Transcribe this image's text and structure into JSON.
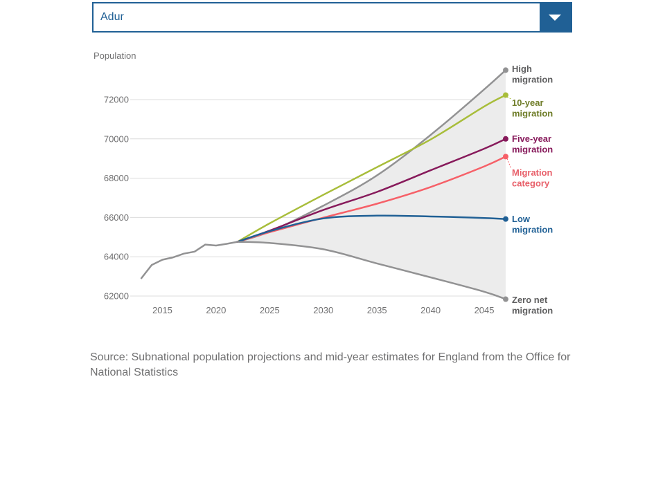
{
  "dropdown": {
    "selected": "Adur"
  },
  "chart_data": {
    "type": "line",
    "ylabel": "Population",
    "xlim": [
      2012,
      2047
    ],
    "ylim": [
      61700,
      73900
    ],
    "xticks": [
      2015,
      2020,
      2025,
      2030,
      2035,
      2040,
      2045
    ],
    "yticks": [
      62000,
      64000,
      66000,
      68000,
      70000,
      72000
    ],
    "grid": "horizontal",
    "shaded_range": {
      "between": [
        "High migration",
        "Zero net migration"
      ],
      "from": 2022,
      "color": "#ececec"
    },
    "historical": {
      "color": "#929293",
      "x": [
        2013,
        2014,
        2015,
        2016,
        2017,
        2018,
        2019,
        2020,
        2021,
        2022
      ],
      "y": [
        62880,
        63580,
        63850,
        63970,
        64160,
        64260,
        64620,
        64570,
        64660,
        64760
      ]
    },
    "series": [
      {
        "name": "High migration",
        "label_lines": [
          "High",
          "migration"
        ],
        "color": "#929293",
        "label_color": "#5e5e5f",
        "x": [
          2022,
          2025,
          2030,
          2035,
          2040,
          2045,
          2047
        ],
        "y": [
          64760,
          65280,
          66600,
          68140,
          70200,
          72520,
          73500
        ]
      },
      {
        "name": "10-year migration",
        "label_lines": [
          "10-year",
          "migration"
        ],
        "color": "#a8bd3a",
        "label_color": "#6e7c27",
        "x": [
          2022,
          2025,
          2030,
          2035,
          2040,
          2045,
          2047
        ],
        "y": [
          64760,
          65700,
          67150,
          68560,
          69970,
          71650,
          72230
        ]
      },
      {
        "name": "Five-year migration",
        "label_lines": [
          "Five-year",
          "migration"
        ],
        "color": "#871a5b",
        "label_color": "#871a5b",
        "x": [
          2022,
          2025,
          2030,
          2035,
          2040,
          2045,
          2047
        ],
        "y": [
          64760,
          65330,
          66380,
          67300,
          68400,
          69500,
          70000
        ]
      },
      {
        "name": "Migration category",
        "label_lines": [
          "Migration",
          "category"
        ],
        "color": "#f66068",
        "label_color": "#e8606a",
        "x": [
          2022,
          2025,
          2030,
          2035,
          2040,
          2045,
          2047
        ],
        "y": [
          64760,
          65250,
          65990,
          66700,
          67550,
          68600,
          69100
        ]
      },
      {
        "name": "Low migration",
        "label_lines": [
          "Low",
          "migration"
        ],
        "color": "#206095",
        "label_color": "#206095",
        "x": [
          2022,
          2025,
          2030,
          2035,
          2040,
          2045,
          2047
        ],
        "y": [
          64760,
          65300,
          65950,
          66090,
          66050,
          65970,
          65920
        ]
      },
      {
        "name": "Zero net migration",
        "label_lines": [
          "Zero net",
          "migration"
        ],
        "color": "#929293",
        "label_color": "#5e5e5f",
        "x": [
          2022,
          2025,
          2030,
          2035,
          2040,
          2045,
          2047
        ],
        "y": [
          64760,
          64700,
          64380,
          63660,
          62950,
          62220,
          61840
        ]
      }
    ]
  },
  "source": {
    "label": "Source:",
    "text": "Subnational population projections and mid-year estimates for England from the Office for National Statistics"
  }
}
